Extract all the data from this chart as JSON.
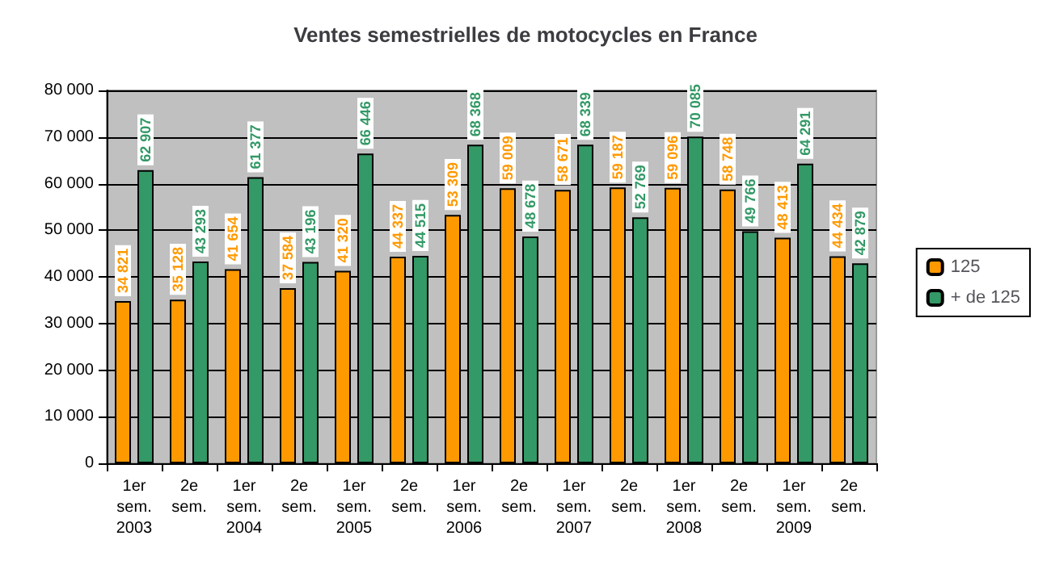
{
  "chart_data": {
    "type": "bar",
    "title": "Ventes semestrielles de motocycles en France",
    "categories": [
      "1er\nsem.\n2003",
      "2e\nsem.",
      "1er\nsem.\n2004",
      "2e\nsem.",
      "1er\nsem.\n2005",
      "2e\nsem.",
      "1er\nsem.\n2006",
      "2e\nsem.",
      "1er\nsem.\n2007",
      "2e\nsem.",
      "1er\nsem.\n2008",
      "2e\nsem.",
      "1er\nsem.\n2009",
      "2e\nsem."
    ],
    "series": [
      {
        "name": "125",
        "color": "#ff9900",
        "values": [
          34821,
          35128,
          41654,
          37584,
          41320,
          44337,
          53309,
          59009,
          58671,
          59187,
          59096,
          58748,
          48413,
          44434
        ],
        "value_labels": [
          "34 821",
          "35 128",
          "41 654",
          "37 584",
          "41 320",
          "44 337",
          "53 309",
          "59 009",
          "58 671",
          "59 187",
          "59 096",
          "58 748",
          "48 413",
          "44 434"
        ]
      },
      {
        "name": "+ de 125",
        "color": "#339966",
        "values": [
          62907,
          43293,
          61377,
          43196,
          66446,
          44515,
          68368,
          48678,
          68339,
          52769,
          70085,
          49766,
          64291,
          42879
        ],
        "value_labels": [
          "62 907",
          "43 293",
          "61 377",
          "43 196",
          "66 446",
          "44 515",
          "68 368",
          "48 678",
          "68 339",
          "52 769",
          "70 085",
          "49 766",
          "64 291",
          "42 879"
        ]
      }
    ],
    "ylim": [
      0,
      80000
    ],
    "yticks": [
      0,
      {
        "value": 10000,
        "label": "10 000"
      },
      {
        "value": 20000,
        "label": "20 000"
      },
      {
        "value": 30000,
        "label": "30 000"
      },
      {
        "value": 40000,
        "label": "40 000"
      },
      {
        "value": 50000,
        "label": "50 000"
      },
      {
        "value": 60000,
        "label": "60 000"
      },
      {
        "value": 70000,
        "label": "70 000"
      },
      {
        "value": 80000,
        "label": "80 000"
      }
    ],
    "grid": "y",
    "legend": "right"
  }
}
